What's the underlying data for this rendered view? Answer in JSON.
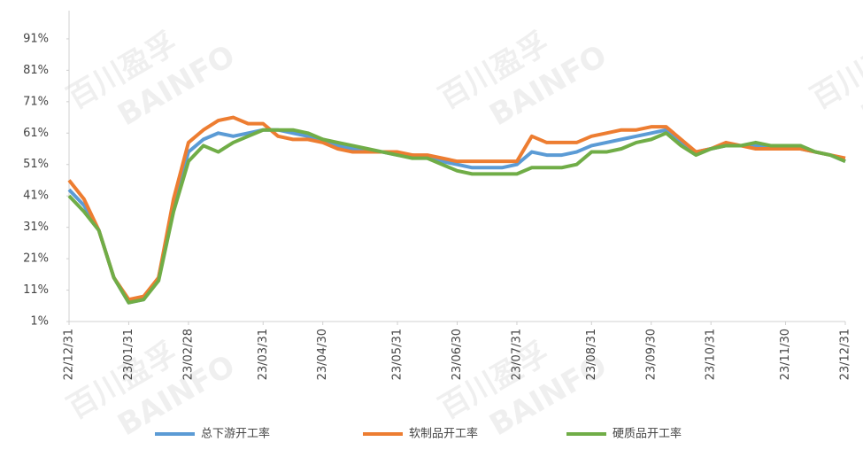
{
  "chart_data": {
    "type": "line",
    "watermark": [
      "百川盈孚",
      "BAINFO"
    ],
    "categories": [
      "22/12/31",
      null,
      null,
      null,
      "23/01/31",
      null,
      null,
      null,
      "23/02/28",
      null,
      null,
      null,
      null,
      "23/03/31",
      null,
      null,
      null,
      "23/04/30",
      null,
      null,
      null,
      null,
      "23/05/31",
      null,
      null,
      null,
      "23/06/30",
      null,
      null,
      null,
      "23/07/31",
      null,
      null,
      null,
      null,
      "23/08/31",
      null,
      null,
      null,
      "23/09/30",
      null,
      null,
      null,
      "23/10/31",
      null,
      null,
      null,
      null,
      "23/11/30",
      null,
      null,
      null,
      "23/12/31"
    ],
    "series": [
      {
        "name": "总下游开工率",
        "color": "#5b9bd5",
        "values": [
          43,
          38,
          30,
          15,
          7,
          8,
          15,
          38,
          55,
          59,
          61,
          60,
          61,
          62,
          62,
          61,
          60,
          59,
          57,
          56,
          55,
          55,
          54,
          54,
          53,
          52,
          51,
          50,
          50,
          50,
          51,
          55,
          54,
          54,
          55,
          57,
          58,
          59,
          60,
          61,
          62,
          58,
          55,
          56,
          57,
          57,
          57,
          56,
          56,
          56,
          55,
          54,
          52
        ]
      },
      {
        "name": "软制品开工率",
        "color": "#ed7d31",
        "values": [
          46,
          40,
          30,
          15,
          8,
          9,
          15,
          40,
          58,
          62,
          65,
          66,
          64,
          64,
          60,
          59,
          59,
          58,
          56,
          55,
          55,
          55,
          55,
          54,
          54,
          53,
          52,
          52,
          52,
          52,
          52,
          60,
          58,
          58,
          58,
          60,
          61,
          62,
          62,
          63,
          63,
          59,
          55,
          56,
          58,
          57,
          56,
          56,
          56,
          56,
          55,
          54,
          53
        ]
      },
      {
        "name": "硬质品开工率",
        "color": "#70ad47",
        "values": [
          41,
          36,
          30,
          15,
          7,
          8,
          14,
          36,
          52,
          57,
          55,
          58,
          60,
          62,
          62,
          62,
          61,
          59,
          58,
          57,
          56,
          55,
          54,
          53,
          53,
          51,
          49,
          48,
          48,
          48,
          48,
          50,
          50,
          50,
          51,
          55,
          55,
          56,
          58,
          59,
          61,
          57,
          54,
          56,
          57,
          57,
          58,
          57,
          57,
          57,
          55,
          54,
          52
        ]
      }
    ],
    "ylim": [
      1,
      100
    ],
    "yticks": [
      {
        "value": 1,
        "label": "1%"
      },
      {
        "value": 11,
        "label": "11%"
      },
      {
        "value": 21,
        "label": "21%"
      },
      {
        "value": 31,
        "label": "31%"
      },
      {
        "value": 41,
        "label": "41%"
      },
      {
        "value": 51,
        "label": "51%"
      },
      {
        "value": 61,
        "label": "61%"
      },
      {
        "value": 71,
        "label": "71%"
      },
      {
        "value": 81,
        "label": "81%"
      },
      {
        "value": 91,
        "label": "91%"
      }
    ],
    "legend": "bottom"
  }
}
